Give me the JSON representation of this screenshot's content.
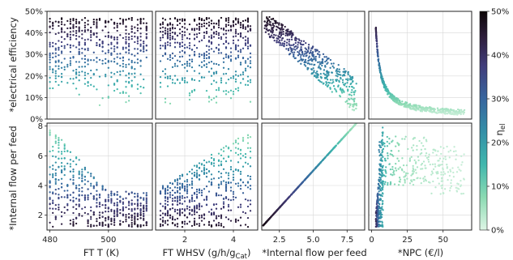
{
  "colors": {
    "colormap_mako": [
      "#0b0405",
      "#2e1e3c",
      "#413d7b",
      "#37659e",
      "#348fa7",
      "#40b7ad",
      "#8bdab2",
      "#def5e5"
    ]
  },
  "chart_data": {
    "type": "scatter",
    "panels": [
      {
        "row": 0,
        "col": 0,
        "x_var": "FT T (K)",
        "y_var": "*electrical efficiency",
        "xlim": [
          479,
          515
        ],
        "ylim": [
          0,
          0.5
        ],
        "xticks": [],
        "yticks": [
          0,
          0.1,
          0.2,
          0.3,
          0.4,
          0.5
        ],
        "ytick_labels": [
          "0%",
          "10%",
          "20%",
          "30%",
          "40%",
          "50%"
        ],
        "data_description": "points at x = 480..513 in ~1 K steps; y spread from ~8% up to an upper edge near 47%; color tracks y"
      },
      {
        "row": 0,
        "col": 1,
        "x_var": "FT WHSV (g/h/g_Cat)",
        "y_var": "*electrical efficiency",
        "xlim": [
          0.8,
          5.0
        ],
        "ylim": [
          0,
          0.5
        ],
        "xticks": [],
        "yticks": [],
        "data_description": "x = 1.0..4.8; y spread ~5%..47%; color tracks y"
      },
      {
        "row": 0,
        "col": 2,
        "x_var": "*Internal flow per feed",
        "y_var": "*electrical efficiency",
        "xlim": [
          1.2,
          8.8
        ],
        "ylim": [
          0,
          0.5
        ],
        "xticks": [],
        "yticks": [],
        "data_description": "decreasing band: ~48% at x~1.5 down to ~10% at x~8"
      },
      {
        "row": 0,
        "col": 3,
        "x_var": "*NPC (€/l)",
        "y_var": "*electrical efficiency",
        "xlim": [
          -2,
          70
        ],
        "ylim": [
          0,
          0.5
        ],
        "xticks": [],
        "yticks": [],
        "data_description": "hyperbolic decay from ~48% at NPC~3 to ~3% at NPC~65"
      },
      {
        "row": 1,
        "col": 0,
        "x_var": "FT T (K)",
        "y_var": "*Internal flow per feed",
        "xlim": [
          479,
          515
        ],
        "ylim": [
          1.0,
          8.2
        ],
        "xticks": [
          480,
          500
        ],
        "yticks": [
          2,
          4,
          6,
          8
        ],
        "ytick_labels": [
          "2",
          "4",
          "6",
          "8"
        ],
        "data_description": "upper envelope decreases from ~8 at 480 K to ~3.5 at 500 K then flat; lower bound ~1.2"
      },
      {
        "row": 1,
        "col": 1,
        "x_var": "FT WHSV (g/h/g_Cat)",
        "y_var": "*Internal flow per feed",
        "xlim": [
          0.8,
          5.0
        ],
        "ylim": [
          1.0,
          8.2
        ],
        "xticks": [
          2,
          4
        ],
        "yticks": [],
        "data_description": "upper envelope rises from ~4 at x=1 to ~7.8 at x=4.8; lower bound ~1.2"
      },
      {
        "row": 1,
        "col": 2,
        "x_var": "*Internal flow per feed",
        "y_var": "*Internal flow per feed",
        "xlim": [
          1.2,
          8.8
        ],
        "ylim": [
          1.0,
          8.2
        ],
        "xticks": [
          2.5,
          5.0,
          7.5
        ],
        "yticks": [],
        "data_description": "identity line y = x from 1.2 to 8.2"
      },
      {
        "row": 1,
        "col": 3,
        "x_var": "*NPC (€/l)",
        "y_var": "*Internal flow per feed",
        "xlim": [
          -2,
          70
        ],
        "ylim": [
          1.0,
          8.2
        ],
        "xticks": [
          0,
          25,
          50
        ],
        "yticks": [],
        "data_description": "steep rise at NPC 3-8 reaching ~6-7, then cloud spreading to NPC~65 at y~4-7"
      }
    ],
    "xtick_labels": {
      "col0": [
        "480",
        "500"
      ],
      "col1": [
        "2",
        "4"
      ],
      "col2": [
        "2.5",
        "5.0",
        "7.5"
      ],
      "col3": [
        "0",
        "25",
        "50"
      ]
    },
    "ytick_labels": {
      "row0": [
        "0%",
        "10%",
        "20%",
        "30%",
        "40%",
        "50%"
      ],
      "row1": [
        "2",
        "4",
        "6",
        "8"
      ]
    },
    "ylabels": [
      "*electrical efficiency",
      "*Internal flow per feed"
    ],
    "colorbar": {
      "label": "η",
      "label_subscript": "el",
      "range": [
        0,
        0.5
      ],
      "ticks": [
        0,
        0.1,
        0.2,
        0.3,
        0.4,
        0.5
      ],
      "tick_labels": [
        "0%",
        "10%",
        "20%",
        "30%",
        "40%",
        "50%"
      ],
      "colormap": "mako_r"
    },
    "grid": true,
    "point_color_variable": "electrical efficiency"
  }
}
